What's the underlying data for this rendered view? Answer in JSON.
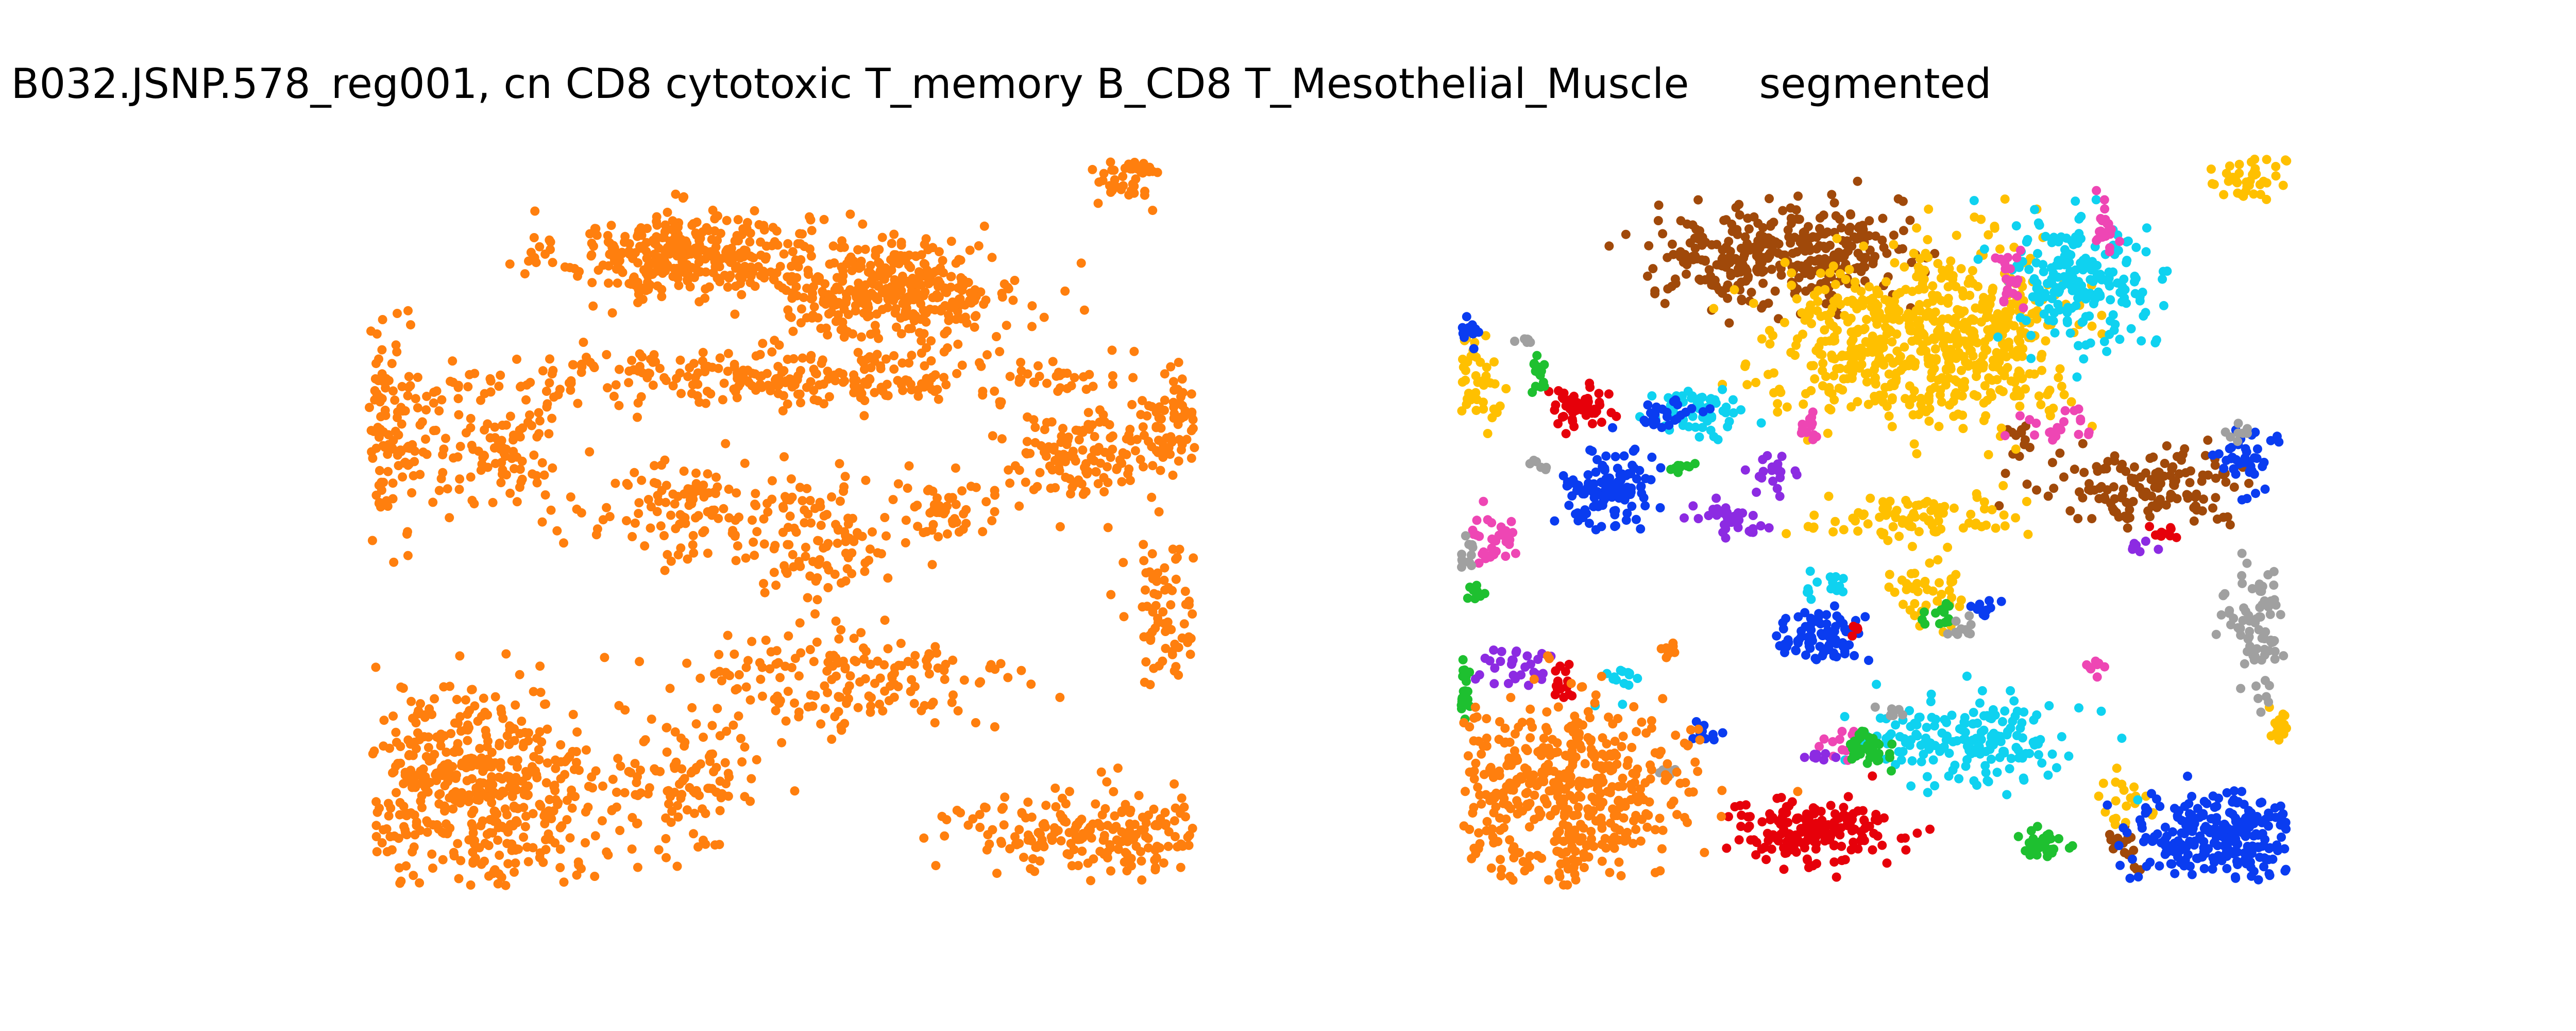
{
  "figure": {
    "left_title": "B032.JSNP.578_reg001, cn CD8 cytotoxic T_memory B_CD8 T_Mesothelial_Muscle",
    "right_title": "segmented"
  },
  "chart_data": [
    {
      "type": "scatter",
      "panel": "left",
      "title": "B032.JSNP.578_reg001, cn CD8 cytotoxic T_memory B_CD8 T_Mesothelial_Muscle",
      "axes_visible": false,
      "grid": false,
      "series": [
        {
          "color": "#ff7f0e",
          "blobs": [
            {
              "cx": 1.22,
              "cy": 9.35,
              "rx": 0.95,
              "ry": 0.55,
              "n": 340
            },
            {
              "cx": 3.0,
              "cy": 8.9,
              "rx": 1.0,
              "ry": 0.6,
              "n": 360
            },
            {
              "cx": 2.2,
              "cy": 7.7,
              "rx": 2.6,
              "ry": 0.35,
              "n": 300
            },
            {
              "cx": -1.4,
              "cy": 7.0,
              "rx": 0.5,
              "ry": 1.2,
              "n": 120
            },
            {
              "cx": -0.3,
              "cy": 6.7,
              "rx": 0.5,
              "ry": 0.8,
              "n": 90
            },
            {
              "cx": 4.6,
              "cy": 6.6,
              "rx": 0.7,
              "ry": 0.55,
              "n": 130
            },
            {
              "cx": 5.4,
              "cy": 7.2,
              "rx": 0.35,
              "ry": 0.5,
              "n": 60
            },
            {
              "cx": 1.2,
              "cy": 5.9,
              "rx": 0.8,
              "ry": 0.6,
              "n": 110
            },
            {
              "cx": 2.3,
              "cy": 5.5,
              "rx": 0.7,
              "ry": 0.8,
              "n": 110
            },
            {
              "cx": 3.4,
              "cy": 5.9,
              "rx": 0.4,
              "ry": 0.6,
              "n": 50
            },
            {
              "cx": 2.6,
              "cy": 3.6,
              "rx": 1.4,
              "ry": 0.7,
              "n": 170
            },
            {
              "cx": -0.6,
              "cy": 2.1,
              "rx": 1.1,
              "ry": 1.2,
              "n": 480
            },
            {
              "cx": 1.3,
              "cy": 2.3,
              "rx": 0.6,
              "ry": 0.9,
              "n": 110
            },
            {
              "cx": 4.8,
              "cy": 1.6,
              "rx": 1.2,
              "ry": 0.55,
              "n": 200
            },
            {
              "cx": 5.3,
              "cy": 4.5,
              "rx": 0.3,
              "ry": 1.0,
              "n": 70
            },
            {
              "cx": 5.0,
              "cy": 10.4,
              "rx": 0.25,
              "ry": 0.35,
              "n": 40
            }
          ]
        }
      ]
    },
    {
      "type": "scatter",
      "panel": "right",
      "title": "segmented",
      "axes_visible": false,
      "grid": false,
      "series": [
        {
          "color": "#a0490a",
          "blobs": [
            {
              "cx": 1.25,
              "cy": 9.35,
              "rx": 0.95,
              "ry": 0.6,
              "n": 340
            },
            {
              "cx": 4.4,
              "cy": 6.2,
              "rx": 0.8,
              "ry": 0.45,
              "n": 150
            },
            {
              "cx": 3.3,
              "cy": 6.9,
              "rx": 0.1,
              "ry": 0.2,
              "n": 12
            },
            {
              "cx": 4.2,
              "cy": 1.4,
              "rx": 0.15,
              "ry": 0.25,
              "n": 18
            }
          ]
        },
        {
          "color": "#ffc000",
          "blobs": [
            {
              "cx": 2.1,
              "cy": 8.2,
              "rx": 0.9,
              "ry": 0.9,
              "n": 360
            },
            {
              "cx": 3.0,
              "cy": 8.3,
              "rx": 0.7,
              "ry": 1.1,
              "n": 300
            },
            {
              "cx": 2.4,
              "cy": 5.8,
              "rx": 0.9,
              "ry": 0.3,
              "n": 90
            },
            {
              "cx": -1.4,
              "cy": 7.6,
              "rx": 0.25,
              "ry": 0.5,
              "n": 40
            },
            {
              "cx": 5.2,
              "cy": 10.4,
              "rx": 0.3,
              "ry": 0.3,
              "n": 40
            },
            {
              "cx": 2.5,
              "cy": 4.8,
              "rx": 0.3,
              "ry": 0.5,
              "n": 40
            },
            {
              "cx": 4.2,
              "cy": 2.0,
              "rx": 0.25,
              "ry": 0.25,
              "n": 20
            },
            {
              "cx": 5.5,
              "cy": 3.0,
              "rx": 0.1,
              "ry": 0.3,
              "n": 15
            }
          ]
        },
        {
          "color": "#0fd2f0",
          "blobs": [
            {
              "cx": 3.8,
              "cy": 9.0,
              "rx": 0.55,
              "ry": 0.8,
              "n": 200
            },
            {
              "cx": 0.55,
              "cy": 7.2,
              "rx": 0.35,
              "ry": 0.3,
              "n": 60
            },
            {
              "cx": 2.9,
              "cy": 2.8,
              "rx": 0.8,
              "ry": 0.55,
              "n": 180
            },
            {
              "cx": 1.6,
              "cy": 4.9,
              "rx": 0.2,
              "ry": 0.15,
              "n": 15
            },
            {
              "cx": -0.1,
              "cy": 3.6,
              "rx": 0.15,
              "ry": 0.25,
              "n": 15
            }
          ]
        },
        {
          "color": "#0a3cf0",
          "blobs": [
            {
              "cx": -0.2,
              "cy": 6.2,
              "rx": 0.35,
              "ry": 0.5,
              "n": 120
            },
            {
              "cx": 0.3,
              "cy": 7.2,
              "rx": 0.25,
              "ry": 0.15,
              "n": 25
            },
            {
              "cx": -1.4,
              "cy": 8.3,
              "rx": 0.1,
              "ry": 0.2,
              "n": 12
            },
            {
              "cx": 1.6,
              "cy": 4.2,
              "rx": 0.35,
              "ry": 0.35,
              "n": 80
            },
            {
              "cx": 5.1,
              "cy": 1.5,
              "rx": 0.8,
              "ry": 0.55,
              "n": 260
            },
            {
              "cx": 5.2,
              "cy": 6.6,
              "rx": 0.2,
              "ry": 0.45,
              "n": 40
            },
            {
              "cx": 3.0,
              "cy": 4.6,
              "rx": 0.15,
              "ry": 0.15,
              "n": 10
            },
            {
              "cx": 0.6,
              "cy": 2.9,
              "rx": 0.15,
              "ry": 0.15,
              "n": 10
            }
          ]
        },
        {
          "color": "#e6000a",
          "blobs": [
            {
              "cx": -0.45,
              "cy": 7.3,
              "rx": 0.25,
              "ry": 0.25,
              "n": 50
            },
            {
              "cx": 1.5,
              "cy": 1.55,
              "rx": 0.65,
              "ry": 0.4,
              "n": 170
            },
            {
              "cx": -0.6,
              "cy": 3.6,
              "rx": 0.1,
              "ry": 0.25,
              "n": 15
            },
            {
              "cx": 4.5,
              "cy": 5.6,
              "rx": 0.15,
              "ry": 0.1,
              "n": 10
            },
            {
              "cx": 1.9,
              "cy": 4.3,
              "rx": 0.05,
              "ry": 0.05,
              "n": 5
            }
          ]
        },
        {
          "color": "#ee46b4",
          "blobs": [
            {
              "cx": 3.2,
              "cy": 9.0,
              "rx": 0.1,
              "ry": 0.4,
              "n": 20
            },
            {
              "cx": 4.0,
              "cy": 9.7,
              "rx": 0.1,
              "ry": 0.4,
              "n": 20
            },
            {
              "cx": 3.6,
              "cy": 7.0,
              "rx": 0.3,
              "ry": 0.2,
              "n": 20
            },
            {
              "cx": -1.2,
              "cy": 5.5,
              "rx": 0.25,
              "ry": 0.3,
              "n": 35
            },
            {
              "cx": 1.5,
              "cy": 7.0,
              "rx": 0.1,
              "ry": 0.25,
              "n": 15
            },
            {
              "cx": 1.8,
              "cy": 2.7,
              "rx": 0.15,
              "ry": 0.2,
              "n": 15
            },
            {
              "cx": 3.9,
              "cy": 3.8,
              "rx": 0.1,
              "ry": 0.1,
              "n": 8
            }
          ]
        },
        {
          "color": "#8c2be2",
          "blobs": [
            {
              "cx": 0.8,
              "cy": 5.8,
              "rx": 0.25,
              "ry": 0.25,
              "n": 35
            },
            {
              "cx": 1.2,
              "cy": 6.4,
              "rx": 0.15,
              "ry": 0.3,
              "n": 20
            },
            {
              "cx": -1.05,
              "cy": 3.8,
              "rx": 0.35,
              "ry": 0.35,
              "n": 30
            },
            {
              "cx": 4.3,
              "cy": 5.4,
              "rx": 0.1,
              "ry": 0.1,
              "n": 8
            },
            {
              "cx": 1.6,
              "cy": 2.6,
              "rx": 0.1,
              "ry": 0.1,
              "n": 8
            }
          ]
        },
        {
          "color": "#1ec030",
          "blobs": [
            {
              "cx": -1.45,
              "cy": 3.5,
              "rx": 0.1,
              "ry": 0.3,
              "n": 20
            },
            {
              "cx": -0.8,
              "cy": 7.7,
              "rx": 0.1,
              "ry": 0.3,
              "n": 15
            },
            {
              "cx": 2.0,
              "cy": 2.7,
              "rx": 0.2,
              "ry": 0.2,
              "n": 40
            },
            {
              "cx": 3.5,
              "cy": 1.4,
              "rx": 0.2,
              "ry": 0.15,
              "n": 35
            },
            {
              "cx": 2.6,
              "cy": 4.5,
              "rx": 0.15,
              "ry": 0.15,
              "n": 15
            },
            {
              "cx": 0.4,
              "cy": 6.5,
              "rx": 0.1,
              "ry": 0.1,
              "n": 10
            },
            {
              "cx": -1.3,
              "cy": 4.8,
              "rx": 0.1,
              "ry": 0.1,
              "n": 10
            }
          ]
        },
        {
          "color": "#a0a0a0",
          "blobs": [
            {
              "cx": 5.3,
              "cy": 4.3,
              "rx": 0.25,
              "ry": 0.8,
              "n": 80
            },
            {
              "cx": -1.45,
              "cy": 5.3,
              "rx": 0.1,
              "ry": 0.2,
              "n": 12
            },
            {
              "cx": -0.9,
              "cy": 8.2,
              "rx": 0.1,
              "ry": 0.05,
              "n": 6
            },
            {
              "cx": 2.2,
              "cy": 3.2,
              "rx": 0.1,
              "ry": 0.1,
              "n": 8
            },
            {
              "cx": 2.8,
              "cy": 4.3,
              "rx": 0.15,
              "ry": 0.15,
              "n": 10
            },
            {
              "cx": 0.3,
              "cy": 2.4,
              "rx": 0.1,
              "ry": 0.1,
              "n": 8
            },
            {
              "cx": -0.8,
              "cy": 6.5,
              "rx": 0.1,
              "ry": 0.1,
              "n": 6
            },
            {
              "cx": 5.1,
              "cy": 6.9,
              "rx": 0.1,
              "ry": 0.1,
              "n": 8
            }
          ]
        },
        {
          "color": "#ff7f0e",
          "blobs": [
            {
              "cx": -0.6,
              "cy": 2.1,
              "rx": 1.0,
              "ry": 1.1,
              "n": 460
            },
            {
              "cx": 0.3,
              "cy": 4.0,
              "rx": 0.1,
              "ry": 0.1,
              "n": 8
            }
          ]
        }
      ]
    }
  ]
}
